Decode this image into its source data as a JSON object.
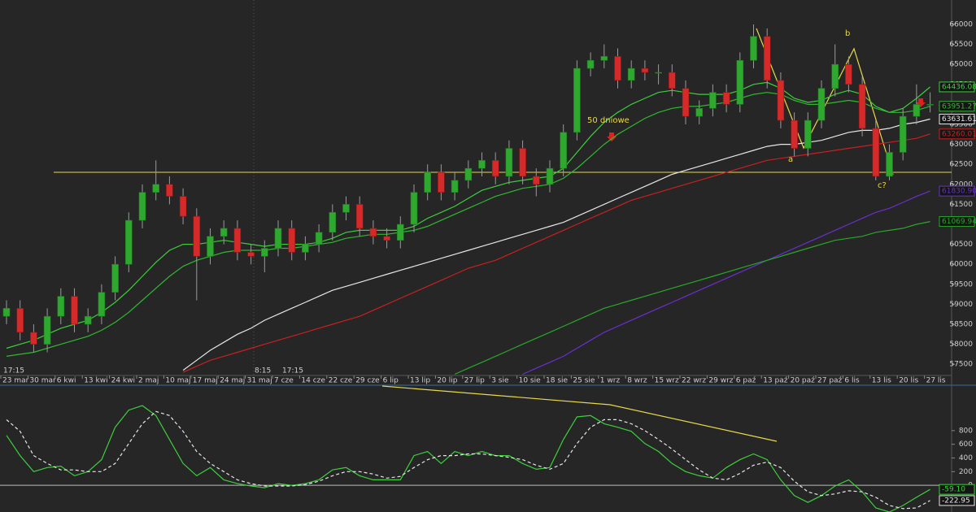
{
  "chart_data": [
    {
      "type": "candlestick",
      "categories": [
        "23 mar",
        null,
        "30 mar",
        null,
        "6 kwi",
        null,
        "13 kwi",
        null,
        "24 kwi",
        null,
        "2 maj",
        null,
        "10 maj",
        null,
        "17 maj",
        null,
        "24 maj",
        null,
        "31 maj",
        null,
        "7 cze",
        null,
        "14 cze",
        null,
        "22 cze",
        null,
        "29 cze",
        null,
        "6 lip",
        null,
        "13 lip",
        null,
        "20 lip",
        null,
        "27 lip",
        null,
        "3 sie",
        null,
        "10 sie",
        null,
        "18 sie",
        null,
        "25 sie",
        null,
        "1 wrz",
        null,
        "8 wrz",
        null,
        "15 wrz",
        null,
        "22 wrz",
        null,
        "29 wrz",
        null,
        "6 paź",
        null,
        "13 paź",
        null,
        "20 paź",
        null,
        "27 paź",
        null,
        "6 lis",
        null,
        "13 lis",
        null,
        "20 lis",
        null,
        "27 lis"
      ],
      "open": [
        58700,
        58900,
        58300,
        58000,
        58700,
        59200,
        58500,
        58700,
        59300,
        60000,
        61100,
        61800,
        62000,
        61700,
        61200,
        60200,
        60700,
        60900,
        60300,
        60200,
        60400,
        60900,
        60300,
        60500,
        60800,
        61300,
        61500,
        60900,
        60700,
        60600,
        61000,
        61800,
        62300,
        61800,
        62100,
        62400,
        62600,
        62200,
        62900,
        62200,
        62000,
        62400,
        63300,
        64900,
        65100,
        65200,
        64600,
        64900,
        64800,
        64800,
        64400,
        63700,
        63900,
        64300,
        64000,
        65100,
        65700,
        64600,
        63600,
        62900,
        63600,
        64400,
        65000,
        64500,
        63400,
        62200,
        62800,
        63700,
        64000
      ],
      "high": [
        59100,
        59100,
        58500,
        58900,
        59400,
        59400,
        58900,
        59500,
        60200,
        61300,
        62000,
        62600,
        62200,
        61900,
        61400,
        60900,
        61100,
        61100,
        60500,
        60600,
        61100,
        61100,
        60700,
        61000,
        61500,
        61700,
        61700,
        61100,
        60900,
        61200,
        62000,
        62500,
        62500,
        62300,
        62600,
        62800,
        62800,
        63100,
        63100,
        62400,
        62600,
        63500,
        65100,
        65300,
        65500,
        65400,
        65100,
        65100,
        65000,
        65000,
        64600,
        64100,
        64500,
        64500,
        65300,
        66000,
        65900,
        64800,
        63800,
        63800,
        64600,
        65500,
        65200,
        64700,
        63600,
        63000,
        63900,
        64500,
        64300
      ],
      "low": [
        58500,
        58100,
        57800,
        57800,
        58500,
        58300,
        58300,
        58500,
        59100,
        59800,
        60900,
        61600,
        61500,
        61000,
        59100,
        60000,
        60500,
        60100,
        60000,
        59800,
        60200,
        60100,
        60100,
        60300,
        60600,
        61100,
        60700,
        60500,
        60400,
        60400,
        60800,
        61600,
        61600,
        61600,
        61900,
        62200,
        62000,
        62000,
        62000,
        61700,
        61800,
        62200,
        63100,
        64700,
        64900,
        64400,
        64400,
        64600,
        64500,
        64200,
        63500,
        63500,
        63700,
        63800,
        63800,
        64900,
        64400,
        63400,
        62700,
        62700,
        63400,
        64200,
        64300,
        63200,
        62100,
        62100,
        62600,
        63500,
        63800
      ],
      "close": [
        58900,
        58300,
        58000,
        58700,
        59200,
        58500,
        58700,
        59300,
        60000,
        61100,
        61800,
        62000,
        61700,
        61200,
        60200,
        60700,
        60900,
        60300,
        60200,
        60400,
        60900,
        60300,
        60500,
        60800,
        61300,
        61500,
        60900,
        60700,
        60600,
        61000,
        61800,
        62300,
        61800,
        62100,
        62400,
        62600,
        62200,
        62900,
        62200,
        62000,
        62400,
        63300,
        64900,
        65100,
        65200,
        64600,
        64900,
        64800,
        64800,
        64400,
        63700,
        63900,
        64300,
        64000,
        65100,
        65700,
        64600,
        63600,
        62900,
        63600,
        64400,
        65000,
        64500,
        63400,
        62200,
        62800,
        63700,
        64000,
        64000
      ],
      "up_color": "#2fa82f",
      "down_color": "#d42a2a",
      "wick_color": "#9a9a9a",
      "series": [
        {
          "color": "#3ccf3c",
          "last_label": "64436.08",
          "values": [
            57900,
            58000,
            58100,
            58250,
            58400,
            58500,
            58600,
            58800,
            59050,
            59350,
            59700,
            60050,
            60350,
            60500,
            60500,
            60550,
            60600,
            60550,
            60500,
            60450,
            60500,
            60500,
            60500,
            60550,
            60650,
            60800,
            60850,
            60850,
            60850,
            60850,
            60950,
            61150,
            61300,
            61450,
            61650,
            61850,
            61950,
            62050,
            62100,
            62150,
            62200,
            62400,
            62800,
            63200,
            63550,
            63800,
            64000,
            64150,
            64300,
            64350,
            64300,
            64250,
            64250,
            64250,
            64350,
            64500,
            64550,
            64400,
            64150,
            64050,
            64100,
            64250,
            64350,
            64250,
            63950,
            63800,
            63900,
            64150,
            64436.08
          ]
        },
        {
          "color": "#2fb82f",
          "last_label": "63951.27",
          "values": [
            57700,
            57750,
            57800,
            57900,
            58000,
            58100,
            58200,
            58350,
            58550,
            58800,
            59100,
            59400,
            59700,
            59950,
            60100,
            60200,
            60300,
            60350,
            60350,
            60350,
            60400,
            60400,
            60450,
            60500,
            60550,
            60650,
            60700,
            60750,
            60750,
            60800,
            60850,
            60950,
            61100,
            61250,
            61400,
            61550,
            61700,
            61800,
            61900,
            61950,
            62000,
            62150,
            62400,
            62700,
            63000,
            63250,
            63450,
            63650,
            63800,
            63900,
            63950,
            63950,
            64000,
            64050,
            64150,
            64250,
            64300,
            64250,
            64100,
            64000,
            64000,
            64050,
            64100,
            64050,
            63900,
            63800,
            63800,
            63850,
            63951.27
          ]
        },
        {
          "color": "#e6e6e6",
          "last_label": "63631.61",
          "values": [
            null,
            null,
            null,
            null,
            null,
            null,
            null,
            null,
            null,
            null,
            null,
            null,
            null,
            57350,
            57600,
            57850,
            58050,
            58250,
            58400,
            58600,
            58750,
            58900,
            59050,
            59200,
            59350,
            59450,
            59550,
            59650,
            59750,
            59850,
            59950,
            60050,
            60150,
            60250,
            60350,
            60450,
            60550,
            60650,
            60750,
            60850,
            60950,
            61050,
            61200,
            61350,
            61500,
            61650,
            61800,
            61950,
            62100,
            62250,
            62350,
            62450,
            62550,
            62650,
            62750,
            62850,
            62950,
            63000,
            63000,
            63050,
            63100,
            63200,
            63300,
            63350,
            63350,
            63400,
            63500,
            63550,
            63631.61
          ]
        },
        {
          "color": "#c8201f",
          "last_label": "63260.01",
          "values": [
            null,
            null,
            null,
            null,
            null,
            null,
            null,
            null,
            null,
            null,
            null,
            null,
            null,
            57300,
            57450,
            57600,
            57700,
            57800,
            57900,
            58000,
            58100,
            58200,
            58300,
            58400,
            58500,
            58600,
            58700,
            58850,
            59000,
            59150,
            59300,
            59450,
            59600,
            59750,
            59900,
            60000,
            60100,
            60250,
            60400,
            60550,
            60700,
            60850,
            61000,
            61150,
            61300,
            61450,
            61600,
            61700,
            61800,
            61900,
            62000,
            62100,
            62200,
            62300,
            62400,
            62500,
            62600,
            62650,
            62700,
            62750,
            62800,
            62850,
            62900,
            62950,
            63000,
            63050,
            63100,
            63150,
            63260.01
          ]
        },
        {
          "color": "#6a2fd0",
          "last_label": "61830.90",
          "values": [
            null,
            null,
            null,
            null,
            null,
            null,
            null,
            null,
            null,
            null,
            null,
            null,
            null,
            null,
            null,
            null,
            null,
            null,
            null,
            null,
            null,
            null,
            null,
            null,
            null,
            null,
            null,
            null,
            null,
            null,
            null,
            null,
            null,
            null,
            null,
            null,
            null,
            null,
            57250,
            57400,
            57550,
            57700,
            57900,
            58100,
            58300,
            58450,
            58600,
            58750,
            58900,
            59050,
            59200,
            59350,
            59500,
            59650,
            59800,
            59950,
            60100,
            60250,
            60400,
            60550,
            60700,
            60850,
            61000,
            61150,
            61300,
            61400,
            61550,
            61700,
            61830.9
          ]
        },
        {
          "color": "#28a828",
          "last_label": "61069.94",
          "values": [
            null,
            null,
            null,
            null,
            null,
            null,
            null,
            null,
            null,
            null,
            null,
            null,
            null,
            null,
            null,
            null,
            null,
            null,
            null,
            null,
            null,
            null,
            null,
            null,
            null,
            null,
            null,
            null,
            null,
            null,
            null,
            null,
            null,
            57250,
            57400,
            57550,
            57700,
            57850,
            58000,
            58150,
            58300,
            58450,
            58600,
            58750,
            58900,
            59000,
            59100,
            59200,
            59300,
            59400,
            59500,
            59600,
            59700,
            59800,
            59900,
            60000,
            60100,
            60200,
            60300,
            60400,
            60500,
            60600,
            60650,
            60700,
            60800,
            60850,
            60900,
            61000,
            61069.94
          ]
        }
      ],
      "reference_line": 62300,
      "reference_color": "#e8d84a",
      "annotations": [
        "50 dniowe",
        "a",
        "b",
        "c?"
      ],
      "time_labels": [
        "17:15",
        "8:15",
        "17:15"
      ],
      "ylim": [
        57220,
        66610
      ],
      "yticks": [
        57500,
        58000,
        58500,
        59000,
        59500,
        60000,
        60500,
        61000,
        61500,
        62000,
        62500,
        63000,
        63500,
        64000,
        64500,
        65000,
        65500,
        66000
      ]
    },
    {
      "type": "line",
      "series": [
        {
          "color": "#3ccf3c",
          "line_style": "solid",
          "last_label": "-59.10",
          "values": [
            730,
            435,
            200,
            260,
            280,
            140,
            200,
            375,
            850,
            1100,
            1165,
            1020,
            670,
            320,
            140,
            260,
            80,
            25,
            -10,
            -35,
            25,
            0,
            25,
            80,
            225,
            260,
            140,
            80,
            80,
            80,
            435,
            495,
            320,
            495,
            435,
            495,
            435,
            435,
            320,
            235,
            260,
            670,
            1000,
            1020,
            900,
            850,
            790,
            610,
            495,
            320,
            200,
            140,
            105,
            260,
            375,
            460,
            375,
            80,
            -150,
            -250,
            -150,
            -10,
            80,
            -95,
            -330,
            -390,
            -295,
            -175,
            -59.1
          ]
        },
        {
          "color": "#e6e6e6",
          "line_style": "dashed",
          "last_label": "-222.95",
          "values": [
            960,
            790,
            435,
            320,
            225,
            225,
            200,
            200,
            320,
            610,
            900,
            1080,
            1020,
            790,
            495,
            320,
            200,
            80,
            25,
            -10,
            -10,
            -10,
            10,
            60,
            140,
            200,
            200,
            165,
            105,
            130,
            260,
            375,
            435,
            435,
            460,
            460,
            435,
            410,
            375,
            295,
            235,
            320,
            610,
            850,
            960,
            960,
            900,
            800,
            670,
            530,
            375,
            225,
            105,
            80,
            175,
            295,
            340,
            260,
            60,
            -95,
            -150,
            -125,
            -80,
            -95,
            -175,
            -295,
            -340,
            -330,
            -222.95
          ]
        }
      ],
      "ylim": [
        -390,
        1440
      ],
      "yticks": [
        0,
        200,
        400,
        600,
        800
      ]
    }
  ]
}
